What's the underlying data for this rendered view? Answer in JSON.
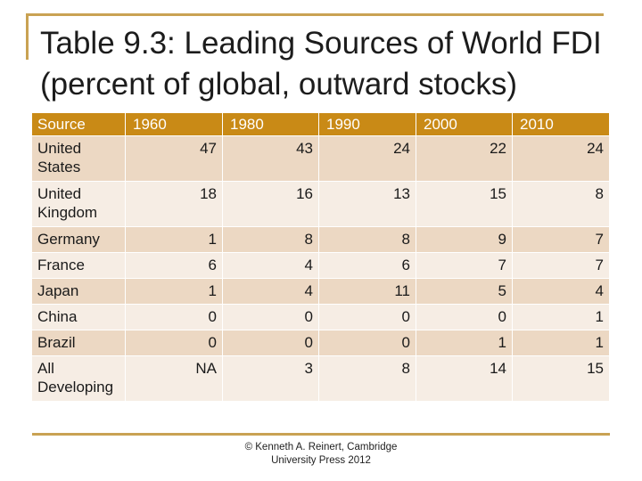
{
  "slide": {
    "title": "Table 9.3: Leading Sources of World FDI (percent of global, outward stocks)",
    "credit_line1": "© Kenneth A. Reinert, Cambridge",
    "credit_line2": "University Press 2012"
  },
  "table": {
    "headers": [
      "Source",
      "1960",
      "1980",
      "1990",
      "2000",
      "2010"
    ],
    "rows": [
      {
        "source": "United States",
        "values": [
          "47",
          "43",
          "24",
          "22",
          "24"
        ]
      },
      {
        "source": "United Kingdom",
        "values": [
          "18",
          "16",
          "13",
          "15",
          "8"
        ]
      },
      {
        "source": "Germany",
        "values": [
          "1",
          "8",
          "8",
          "9",
          "7"
        ]
      },
      {
        "source": "France",
        "values": [
          "6",
          "4",
          "6",
          "7",
          "7"
        ]
      },
      {
        "source": "Japan",
        "values": [
          "1",
          "4",
          "11",
          "5",
          "4"
        ]
      },
      {
        "source": "China",
        "values": [
          "0",
          "0",
          "0",
          "0",
          "1"
        ]
      },
      {
        "source": "Brazil",
        "values": [
          "0",
          "0",
          "0",
          "1",
          "1"
        ]
      },
      {
        "source": "All Developing",
        "values": [
          "NA",
          "3",
          "8",
          "14",
          "15"
        ]
      }
    ]
  },
  "colors": {
    "accent_rule": "#c9a253",
    "header_fill": "#c98a16",
    "row_odd": "#ecd8c3",
    "row_even": "#f6ede4"
  }
}
